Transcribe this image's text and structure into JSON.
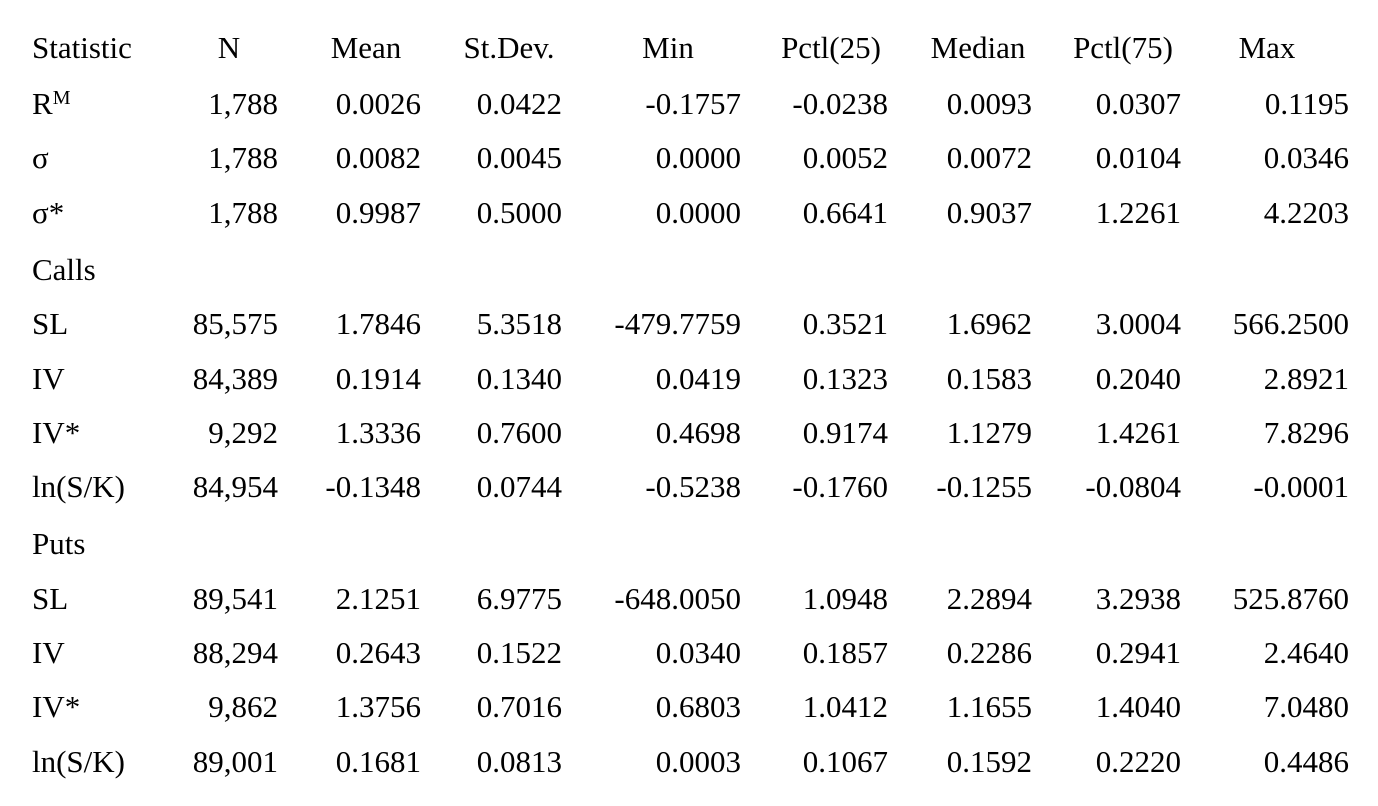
{
  "table": {
    "header": [
      "Statistic",
      "N",
      "Mean",
      "St.Dev.",
      "Min",
      "Pctl(25)",
      "Median",
      "Pctl(75)",
      "Max"
    ],
    "groups": [
      {
        "rows": [
          {
            "label": "R",
            "label_sup": "M",
            "cells": [
              "1,788",
              "0.0026",
              "0.0422",
              "-0.1757",
              "-0.0238",
              "0.0093",
              "0.0307",
              "0.1195"
            ]
          },
          {
            "label": "σ",
            "cells": [
              "1,788",
              "0.0082",
              "0.0045",
              "0.0000",
              "0.0052",
              "0.0072",
              "0.0104",
              "0.0346"
            ]
          },
          {
            "label": "σ*",
            "cells": [
              "1,788",
              "0.9987",
              "0.5000",
              "0.0000",
              "0.6641",
              "0.9037",
              "1.2261",
              "4.2203"
            ]
          }
        ]
      },
      {
        "title": "Calls",
        "rows": [
          {
            "label": "SL",
            "cells": [
              "85,575",
              "1.7846",
              "5.3518",
              "-479.7759",
              "0.3521",
              "1.6962",
              "3.0004",
              "566.2500"
            ]
          },
          {
            "label": "IV",
            "cells": [
              "84,389",
              "0.1914",
              "0.1340",
              "0.0419",
              "0.1323",
              "0.1583",
              "0.2040",
              "2.8921"
            ]
          },
          {
            "label": "IV*",
            "cells": [
              "9,292",
              "1.3336",
              "0.7600",
              "0.4698",
              "0.9174",
              "1.1279",
              "1.4261",
              "7.8296"
            ]
          },
          {
            "label": "ln(S/K)",
            "cells": [
              "84,954",
              "-0.1348",
              "0.0744",
              "-0.5238",
              "-0.1760",
              "-0.1255",
              "-0.0804",
              "-0.0001"
            ]
          }
        ]
      },
      {
        "title": "Puts",
        "rows": [
          {
            "label": "SL",
            "cells": [
              "89,541",
              "2.1251",
              "6.9775",
              "-648.0050",
              "1.0948",
              "2.2894",
              "3.2938",
              "525.8760"
            ]
          },
          {
            "label": "IV",
            "cells": [
              "88,294",
              "0.2643",
              "0.1522",
              "0.0340",
              "0.1857",
              "0.2286",
              "0.2941",
              "2.4640"
            ]
          },
          {
            "label": "IV*",
            "cells": [
              "9,862",
              "1.3756",
              "0.7016",
              "0.6803",
              "1.0412",
              "1.1655",
              "1.4040",
              "7.0480"
            ]
          },
          {
            "label": "ln(S/K)",
            "cells": [
              "89,001",
              "0.1681",
              "0.0813",
              "0.0003",
              "0.1067",
              "0.1592",
              "0.2220",
              "0.4486"
            ]
          }
        ]
      }
    ]
  }
}
